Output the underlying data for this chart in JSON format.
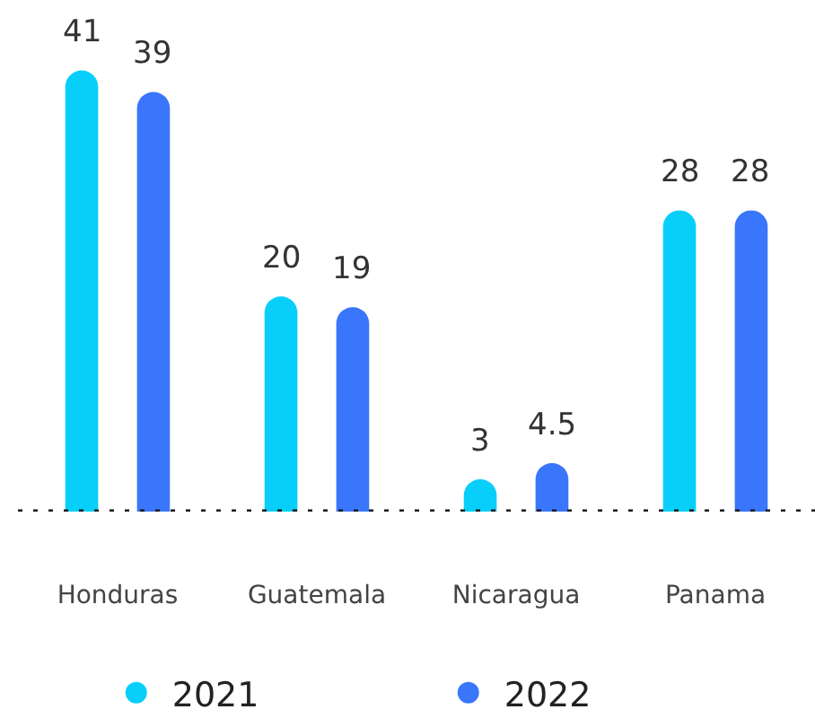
{
  "chart_data": {
    "type": "bar",
    "categories": [
      "Honduras",
      "Guatemala",
      "Nicaragua",
      "Panama"
    ],
    "series": [
      {
        "name": "2021",
        "color": "#08cffa",
        "values": [
          41,
          20,
          3,
          28
        ]
      },
      {
        "name": "2022",
        "color": "#3a76fb",
        "values": [
          39,
          19,
          4.5,
          28
        ]
      }
    ],
    "data_labels": true,
    "legend": "bottom",
    "ref_lines": [
      {
        "axis": "y",
        "value": 0,
        "line_style": "dotted",
        "color": "#1a1a1a"
      }
    ]
  }
}
